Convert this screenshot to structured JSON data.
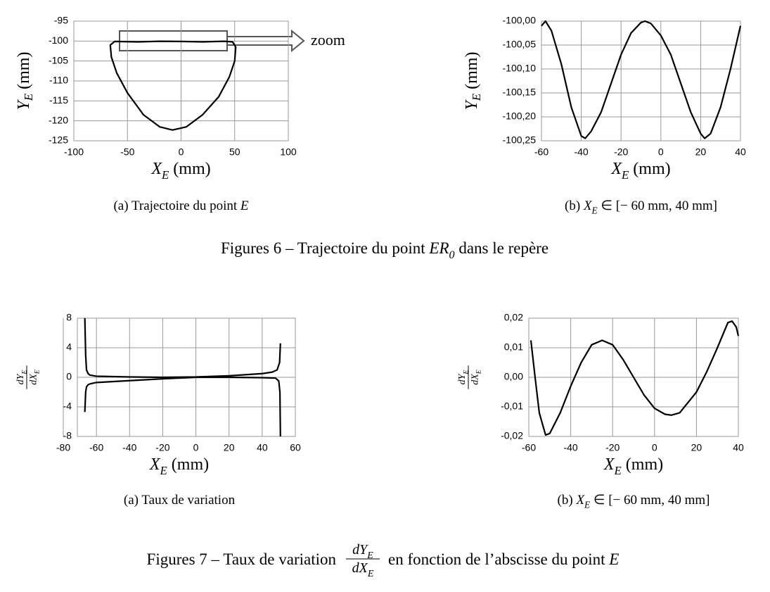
{
  "chart_data": [
    {
      "type": "line",
      "annotation": "zoom",
      "xlabel": {
        "main": "X",
        "sub": "E",
        "rest": " (mm)"
      },
      "ylabel": {
        "main": "Y",
        "sub": "E",
        "rest": " (mm)"
      },
      "caption": {
        "prefix": "(a) Trajectoire du point ",
        "main": "E"
      },
      "xlim": [
        -100,
        100
      ],
      "xticks": [
        -100,
        -50,
        0,
        50,
        100
      ],
      "ylim": [
        -125,
        -95
      ],
      "yticks": [
        -125,
        -120,
        -115,
        -110,
        -105,
        -100,
        -95
      ],
      "grid": true,
      "series": [
        {
          "color": "#000000",
          "x": [
            -62,
            -40,
            -20,
            0,
            20,
            40,
            48,
            51,
            50,
            45,
            35,
            20,
            5,
            -8,
            -20,
            -35,
            -50,
            -60,
            -65,
            -66,
            -62
          ],
          "values": [
            -100.1,
            -100.2,
            -100.05,
            -100.1,
            -100.2,
            -100.05,
            -100.2,
            -101.5,
            -105,
            -109,
            -114,
            -118.5,
            -121.5,
            -122.3,
            -121.5,
            -118.5,
            -113,
            -108,
            -104,
            -101,
            -100.1
          ]
        }
      ]
    },
    {
      "type": "line",
      "xlabel": {
        "main": "X",
        "sub": "E",
        "rest": " (mm)"
      },
      "ylabel": {
        "main": "Y",
        "sub": "E",
        "rest": " (mm)"
      },
      "caption": {
        "prefix": "(b) ",
        "main": "X",
        "sub": "E",
        "rest": " ∈ [− 60 mm, 40 mm]"
      },
      "xlim": [
        -60,
        40
      ],
      "xticks": [
        -60,
        -40,
        -20,
        0,
        20,
        40
      ],
      "ylim": [
        -100.25,
        -100
      ],
      "yticks": [
        {
          "value": -100.25,
          "label": "-100,25"
        },
        {
          "value": -100.2,
          "label": "-100,20"
        },
        {
          "value": -100.15,
          "label": "-100,15"
        },
        {
          "value": -100.1,
          "label": "-100,10"
        },
        {
          "value": -100.05,
          "label": "-100,05"
        },
        {
          "value": -100,
          "label": "-100,00"
        }
      ],
      "grid": true,
      "series": [
        {
          "color": "#000000",
          "x": [
            -60,
            -58,
            -55,
            -50,
            -45,
            -40,
            -38,
            -35,
            -30,
            -25,
            -20,
            -15,
            -10,
            -8,
            -5,
            0,
            5,
            10,
            15,
            20,
            22,
            25,
            30,
            35,
            40
          ],
          "values": [
            -100.01,
            -100.0,
            -100.02,
            -100.09,
            -100.18,
            -100.24,
            -100.245,
            -100.23,
            -100.19,
            -100.13,
            -100.07,
            -100.025,
            -100.003,
            -100.0,
            -100.005,
            -100.03,
            -100.07,
            -100.13,
            -100.19,
            -100.235,
            -100.245,
            -100.235,
            -100.18,
            -100.1,
            -100.01
          ]
        }
      ]
    },
    {
      "type": "line",
      "xlabel": {
        "main": "X",
        "sub": "E",
        "rest": " (mm)"
      },
      "ylabel": {
        "num": "dY",
        "num_sub": "E",
        "den": "dX",
        "den_sub": "E"
      },
      "caption": "(a) Taux de variation",
      "xlim": [
        -80,
        60
      ],
      "xticks": [
        -80,
        -60,
        -40,
        -20,
        0,
        20,
        40,
        60
      ],
      "ylim": [
        -8,
        8
      ],
      "yticks": [
        -8,
        -4,
        0,
        4,
        8
      ],
      "grid": true,
      "series": [
        {
          "color": "#000000",
          "x": [
            -67,
            -66.5,
            -66,
            -65,
            -64,
            -60,
            -40,
            -20,
            0,
            20,
            40,
            46,
            49,
            50.5,
            51
          ],
          "values": [
            8,
            3,
            1,
            0.5,
            0.3,
            0.15,
            0.05,
            0,
            0.05,
            0.2,
            0.5,
            0.7,
            1,
            2,
            4.6
          ]
        },
        {
          "color": "#000000",
          "x": [
            -67,
            -66.5,
            -66,
            -65,
            -64,
            -60,
            -40,
            -20,
            0,
            20,
            40,
            48,
            50,
            50.7,
            51
          ],
          "values": [
            -4.7,
            -2,
            -1.3,
            -1,
            -0.9,
            -0.7,
            -0.45,
            -0.2,
            0,
            0,
            -0.05,
            -0.1,
            -0.5,
            -2,
            -8
          ]
        }
      ]
    },
    {
      "type": "line",
      "xlabel": {
        "main": "X",
        "sub": "E",
        "rest": " (mm)"
      },
      "ylabel": {
        "num": "dY",
        "num_sub": "E",
        "den": "dX",
        "den_sub": "E"
      },
      "caption": {
        "prefix": "(b) ",
        "main": "X",
        "sub": "E",
        "rest": " ∈ [− 60 mm, 40 mm]"
      },
      "xlim": [
        -60,
        40
      ],
      "xticks": [
        -60,
        -40,
        -20,
        0,
        20,
        40
      ],
      "ylim": [
        -0.02,
        0.02
      ],
      "yticks": [
        {
          "value": -0.02,
          "label": "-0,02"
        },
        {
          "value": -0.01,
          "label": "-0,01"
        },
        {
          "value": 0,
          "label": "0,00"
        },
        {
          "value": 0.01,
          "label": "0,01"
        },
        {
          "value": 0.02,
          "label": "0,02"
        }
      ],
      "grid": true,
      "series": [
        {
          "color": "#000000",
          "x": [
            -59,
            -57,
            -55,
            -52,
            -50,
            -45,
            -40,
            -35,
            -30,
            -25,
            -20,
            -15,
            -10,
            -5,
            0,
            5,
            8,
            12,
            20,
            25,
            30,
            35,
            37,
            39,
            40
          ],
          "values": [
            0.0125,
            0.0,
            -0.012,
            -0.0195,
            -0.019,
            -0.012,
            -0.003,
            0.005,
            0.011,
            0.0125,
            0.011,
            0.006,
            0.0,
            -0.006,
            -0.0105,
            -0.0125,
            -0.0128,
            -0.012,
            -0.005,
            0.002,
            0.01,
            0.0185,
            0.019,
            0.017,
            0.014
          ]
        }
      ]
    }
  ],
  "figures": [
    {
      "prefix": "Figures 6 – Trajectoire du point ",
      "main": "E",
      "rest": " dans le repère ",
      "symbol": "R",
      "sub": "0"
    },
    {
      "prefix": "Figures 7 – Taux de variation",
      "num": "dY",
      "num_sub": "E",
      "den": "dX",
      "den_sub": "E",
      "rest": "en fonction de l’abscisse du point ",
      "main": "E"
    }
  ]
}
